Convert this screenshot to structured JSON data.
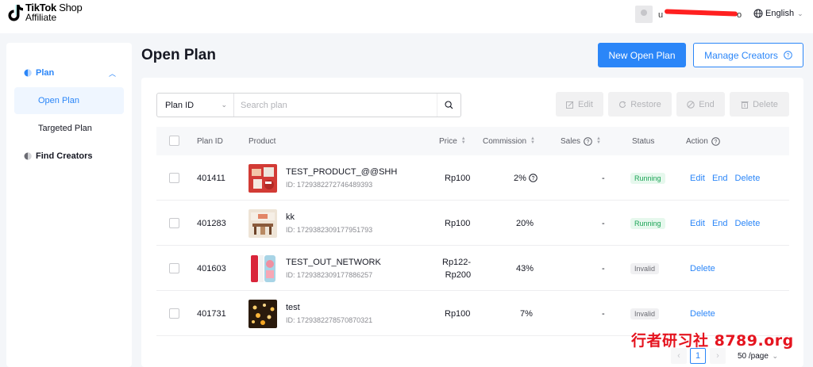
{
  "app": {
    "logo_line1_bold": "TikTok",
    "logo_line1_rest": " Shop",
    "logo_line2": "Affiliate",
    "user_name_visible": "u",
    "user_name_tail": "o",
    "language": "English"
  },
  "sidebar": {
    "items": [
      {
        "label": "Plan",
        "icon": "plan-icon",
        "expanded": true
      },
      {
        "label": "Open Plan",
        "active": true
      },
      {
        "label": "Targeted Plan",
        "active": false
      },
      {
        "label": "Find Creators",
        "icon": "find-creators-icon"
      }
    ]
  },
  "header": {
    "title": "Open Plan",
    "new_button": "New Open Plan",
    "manage_button": "Manage Creators"
  },
  "search": {
    "field_select": "Plan ID",
    "placeholder": "Search plan"
  },
  "toolbar": {
    "edit": "Edit",
    "restore": "Restore",
    "end": "End",
    "delete": "Delete"
  },
  "table": {
    "columns": {
      "plan_id": "Plan ID",
      "product": "Product",
      "price": "Price",
      "commission": "Commission",
      "sales": "Sales",
      "status": "Status",
      "action": "Action"
    },
    "rows": [
      {
        "plan_id": "401411",
        "product_name": "TEST_PRODUCT_@@SHH",
        "product_id": "ID: 1729382272746489393",
        "price": "Rp100",
        "price2": "",
        "commission": "2%",
        "sales": "-",
        "status": "Running",
        "actions": [
          "Edit",
          "End",
          "Delete"
        ]
      },
      {
        "plan_id": "401283",
        "product_name": "kk",
        "product_id": "ID: 1729382309177951793",
        "price": "Rp100",
        "price2": "",
        "commission": "20%",
        "sales": "-",
        "status": "Running",
        "actions": [
          "Edit",
          "End",
          "Delete"
        ]
      },
      {
        "plan_id": "401603",
        "product_name": "TEST_OUT_NETWORK",
        "product_id": "ID: 1729382309177886257",
        "price": "Rp122-",
        "price2": "Rp200",
        "commission": "43%",
        "sales": "-",
        "status": "Invalid",
        "actions": [
          "Delete"
        ]
      },
      {
        "plan_id": "401731",
        "product_name": "test",
        "product_id": "ID: 1729382278570870321",
        "price": "Rp100",
        "price2": "",
        "commission": "7%",
        "sales": "-",
        "status": "Invalid",
        "actions": [
          "Delete"
        ]
      }
    ]
  },
  "pagination": {
    "prev": "‹",
    "current_page": "1",
    "next": "›",
    "page_size": "50 /page"
  },
  "watermark": "行者研习社 8789.org",
  "colors": {
    "accent": "#2b86f8",
    "running_text": "#1aa355",
    "running_bg": "#e6f8ed",
    "invalid_bg": "#f0f0f2",
    "watermark": "#e5141f"
  }
}
